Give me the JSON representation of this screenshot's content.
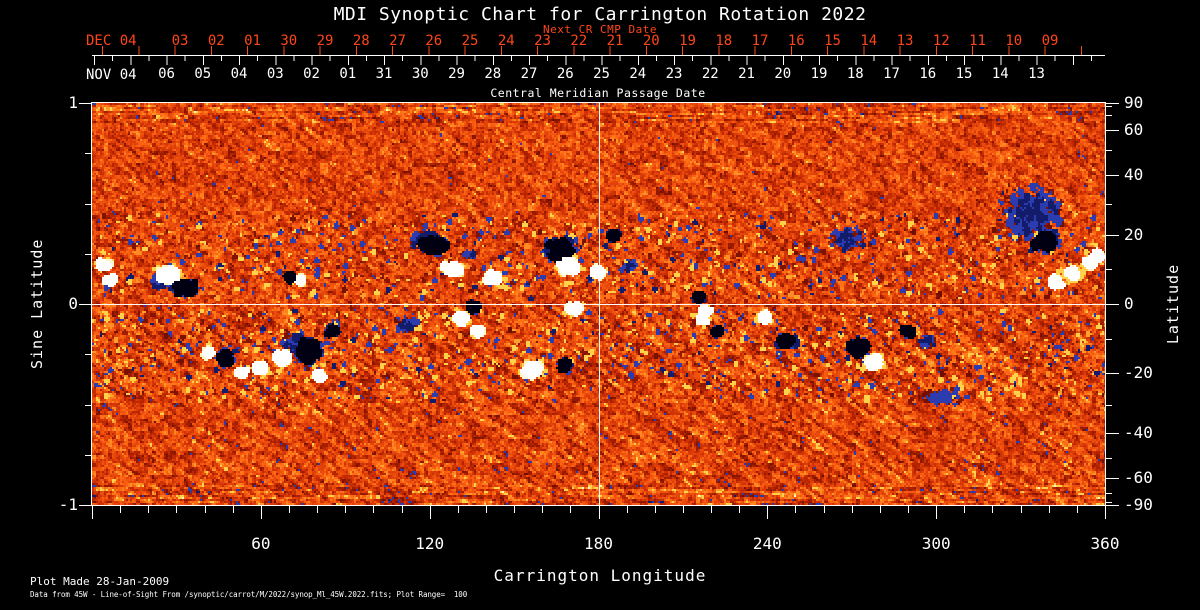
{
  "title": "MDI Synoptic Chart for Carrington Rotation 2022",
  "accent_color": "#ff4619",
  "top_axis": {
    "next_label": "Next CR CMP Date",
    "next_month_label": "DEC 04",
    "next_days": [
      "03",
      "02",
      "01",
      "30",
      "29",
      "28",
      "27",
      "26",
      "25",
      "24",
      "23",
      "22",
      "21",
      "20",
      "19",
      "18",
      "17",
      "16",
      "15",
      "14",
      "13",
      "12",
      "11",
      "10",
      "09"
    ],
    "cmp_month_label": "NOV 04",
    "cmp_days": [
      "06",
      "05",
      "04",
      "03",
      "02",
      "01",
      "31",
      "30",
      "29",
      "28",
      "27",
      "26",
      "25",
      "24",
      "23",
      "22",
      "21",
      "20",
      "19",
      "18",
      "17",
      "16",
      "15",
      "14",
      "13"
    ],
    "cmp_axis_label": "Central Meridian Passage Date"
  },
  "left_axis": {
    "label": "Sine Latitude",
    "major": [
      {
        "v": 1,
        "label": "1"
      },
      {
        "v": 0,
        "label": "0"
      },
      {
        "v": -1,
        "label": "-1"
      }
    ],
    "minor": [
      0.75,
      0.5,
      0.25,
      -0.25,
      -0.5,
      -0.75
    ]
  },
  "right_axis": {
    "label": "Latitude",
    "major": [
      {
        "v": 90,
        "label": "90"
      },
      {
        "v": 60,
        "label": "60"
      },
      {
        "v": 40,
        "label": "40"
      },
      {
        "v": 20,
        "label": "20"
      },
      {
        "v": 0,
        "label": "0"
      },
      {
        "v": -20,
        "label": "-20"
      },
      {
        "v": -40,
        "label": "-40"
      },
      {
        "v": -60,
        "label": "-60"
      },
      {
        "v": -90,
        "label": "-90"
      }
    ],
    "minor": [
      80,
      70,
      50,
      30,
      10,
      -10,
      -30,
      -50,
      -70,
      -80
    ]
  },
  "bottom_axis": {
    "label": "Carrington Longitude",
    "major": [
      {
        "v": 60,
        "label": "60"
      },
      {
        "v": 120,
        "label": "120"
      },
      {
        "v": 180,
        "label": "180"
      },
      {
        "v": 240,
        "label": "240"
      },
      {
        "v": 300,
        "label": "300"
      },
      {
        "v": 360,
        "label": "360"
      }
    ],
    "unlabeled_major": [
      0
    ],
    "minor_step_deg": 10
  },
  "footer": {
    "line1": "Plot Made 28-Jan-2009",
    "line2": "Data from 45W - Line-of-Sight From /synoptic/carrot/M/2022/synop_Ml_45W.2022.fits; Plot Range=  100"
  },
  "chart_data": {
    "type": "heatmap",
    "title": "MDI Synoptic Chart for Carrington Rotation 2022",
    "xlabel": "Carrington Longitude",
    "xlim": [
      0,
      360
    ],
    "ylabel_left": "Sine Latitude",
    "ylim_left": [
      -1,
      1
    ],
    "ylabel_right": "Latitude",
    "ylim_right": [
      -90,
      90
    ],
    "grid": false,
    "crosshair": {
      "longitude": 180,
      "sine_latitude": 0,
      "color": "#ffffff"
    },
    "palette": {
      "negative_core": "#000012",
      "negative": "#131b6b",
      "negative_edge": "#2c3cae",
      "background_ramp": [
        "#6f0e00",
        "#b82400",
        "#e4420a",
        "#ff6a14",
        "#ffa22e"
      ],
      "positive_edge": "#ffd24a",
      "positive": "#fff6c8",
      "positive_core": "#ffffff"
    },
    "activity_bands_sine_latitude": [
      [
        0.03,
        0.45
      ],
      [
        -0.48,
        -0.03
      ]
    ],
    "active_regions_fields": [
      "longitude_deg",
      "sine_latitude",
      "radius_lon_deg",
      "radius_sine_lat",
      "strength",
      "polarity",
      "diffuse"
    ],
    "active_regions": [
      [
        27,
        0.154,
        5,
        0.045,
        1,
        "P",
        0
      ],
      [
        33,
        0.085,
        5.7,
        0.04,
        1,
        "N",
        0
      ],
      [
        24,
        0.12,
        7,
        0.06,
        0.5,
        "N",
        1
      ],
      [
        70,
        0.134,
        1.4,
        0.02,
        0.8,
        "N",
        0
      ],
      [
        73.6,
        0.124,
        1.4,
        0.02,
        0.8,
        "P",
        0
      ],
      [
        3.6,
        0.2,
        2.8,
        0.025,
        0.8,
        "P",
        0
      ],
      [
        6,
        0.12,
        2.2,
        0.02,
        0.5,
        "P",
        0
      ],
      [
        120.8,
        0.3,
        7.1,
        0.055,
        0.78,
        "N",
        0
      ],
      [
        118,
        0.32,
        8,
        0.07,
        0.5,
        "N",
        1
      ],
      [
        128,
        0.18,
        4.3,
        0.035,
        0.9,
        "P",
        0
      ],
      [
        142,
        0.134,
        3.6,
        0.03,
        0.85,
        "P",
        0
      ],
      [
        134,
        0.25,
        3,
        0.03,
        0.5,
        "N",
        1
      ],
      [
        166,
        0.278,
        5.7,
        0.06,
        1,
        "N",
        0
      ],
      [
        169,
        0.194,
        4.3,
        0.045,
        1,
        "P",
        0
      ],
      [
        179.5,
        0.159,
        2.5,
        0.035,
        0.9,
        "P",
        0
      ],
      [
        184.8,
        0.343,
        2.8,
        0.025,
        0.7,
        "N",
        0
      ],
      [
        190,
        0.2,
        4,
        0.05,
        0.4,
        "N",
        1
      ],
      [
        215,
        0.035,
        2.1,
        0.02,
        0.7,
        "N",
        0
      ],
      [
        217.5,
        -0.03,
        2.5,
        0.025,
        0.8,
        "P",
        0
      ],
      [
        267.6,
        0.328,
        7.8,
        0.07,
        0.5,
        "N",
        1
      ],
      [
        251.6,
        0.229,
        2.8,
        0.025,
        0.5,
        "N",
        1
      ],
      [
        333,
        0.458,
        16,
        0.19,
        0.45,
        "N",
        1
      ],
      [
        338,
        0.318,
        5,
        0.05,
        0.85,
        "N",
        0
      ],
      [
        348,
        0.15,
        8,
        0.06,
        0.5,
        "P",
        1
      ],
      [
        342,
        0.109,
        2.5,
        0.03,
        0.9,
        "P",
        0
      ],
      [
        347.5,
        0.159,
        2.5,
        0.03,
        0.9,
        "P",
        0
      ],
      [
        354,
        0.209,
        2.5,
        0.03,
        0.9,
        "P",
        0
      ],
      [
        356.8,
        0.244,
        2.2,
        0.03,
        0.85,
        "P",
        0
      ],
      [
        46.9,
        -0.264,
        3.2,
        0.045,
        1,
        "N",
        0
      ],
      [
        41.2,
        -0.239,
        1.8,
        0.02,
        0.7,
        "P",
        0
      ],
      [
        52.6,
        -0.338,
        2.5,
        0.025,
        0.8,
        "P",
        0
      ],
      [
        59.3,
        -0.318,
        2.8,
        0.03,
        0.9,
        "P",
        0
      ],
      [
        76.4,
        -0.229,
        5,
        0.08,
        1,
        "N",
        0
      ],
      [
        67.2,
        -0.264,
        3.2,
        0.035,
        0.9,
        "P",
        0
      ],
      [
        84.9,
        -0.129,
        2.5,
        0.025,
        0.8,
        "N",
        0
      ],
      [
        80.3,
        -0.348,
        2.8,
        0.025,
        0.7,
        "P",
        0
      ],
      [
        72,
        -0.2,
        7,
        0.09,
        0.45,
        "N",
        1
      ],
      [
        112.3,
        -0.1,
        6.4,
        0.05,
        0.55,
        "N",
        1
      ],
      [
        130.4,
        -0.065,
        3.2,
        0.035,
        0.9,
        "P",
        0
      ],
      [
        135,
        -0.01,
        2.5,
        0.025,
        0.7,
        "N",
        0
      ],
      [
        136.8,
        -0.134,
        2.5,
        0.025,
        0.7,
        "P",
        0
      ],
      [
        156,
        -0.323,
        4.6,
        0.05,
        1,
        "P",
        0
      ],
      [
        167.4,
        -0.303,
        2.8,
        0.035,
        0.8,
        "N",
        0
      ],
      [
        170.9,
        -0.02,
        3.2,
        0.03,
        0.8,
        "P",
        0
      ],
      [
        216.4,
        -0.07,
        2.8,
        0.03,
        0.8,
        "P",
        0
      ],
      [
        221.7,
        -0.134,
        2.1,
        0.02,
        0.6,
        "N",
        0
      ],
      [
        238.4,
        -0.065,
        2.8,
        0.035,
        0.9,
        "P",
        0
      ],
      [
        246.6,
        -0.179,
        3.9,
        0.035,
        0.8,
        "N",
        0
      ],
      [
        271.5,
        -0.214,
        4.6,
        0.05,
        1,
        "N",
        0
      ],
      [
        277.2,
        -0.284,
        3.6,
        0.035,
        0.9,
        "P",
        0
      ],
      [
        289.3,
        -0.134,
        2.5,
        0.025,
        0.8,
        "N",
        0
      ],
      [
        301.4,
        -0.453,
        9,
        0.06,
        0.3,
        "N",
        1
      ],
      [
        296,
        -0.18,
        5,
        0.05,
        0.4,
        "N",
        1
      ]
    ]
  }
}
